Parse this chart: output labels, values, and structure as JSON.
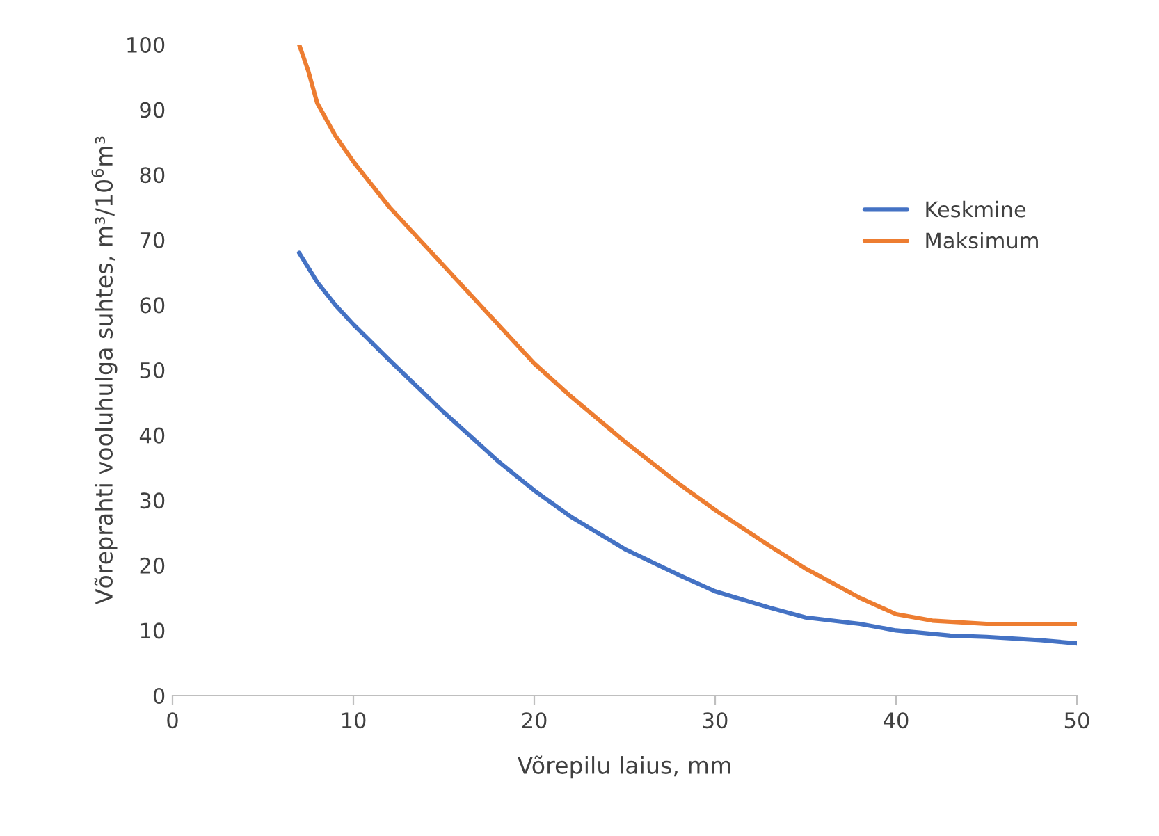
{
  "chart_data": {
    "type": "line",
    "xlabel": "Võrepilu laius, mm",
    "ylabel": "Võreprahti vooluhulga suhtes, m³/10$^{6}$m³",
    "xlim": [
      0,
      50
    ],
    "xticks": [
      0,
      10,
      20,
      30,
      40,
      50
    ],
    "ylim": [
      0,
      100
    ],
    "yticks": [
      0,
      10,
      20,
      30,
      40,
      50,
      60,
      70,
      80,
      90,
      100
    ],
    "grid": false,
    "legend": "right",
    "line_style": "solid",
    "marker": "none",
    "series": [
      {
        "name": "Keskmine",
        "color": "#4472c4",
        "x": [
          7,
          8,
          9,
          10,
          12,
          15,
          18,
          20,
          22,
          25,
          28,
          30,
          33,
          35,
          38,
          40,
          43,
          45,
          48,
          50
        ],
        "values": [
          68,
          63.5,
          60,
          57,
          51.5,
          43.5,
          36,
          31.5,
          27.5,
          22.5,
          18.5,
          16,
          13.5,
          12,
          11,
          10,
          9.2,
          9,
          8.5,
          8
        ]
      },
      {
        "name": "Maksimum",
        "color": "#ed7d31",
        "x": [
          7,
          7.5,
          8,
          9,
          10,
          12,
          15,
          18,
          20,
          22,
          25,
          28,
          30,
          33,
          35,
          38,
          40,
          42,
          45,
          48,
          50
        ],
        "values": [
          100,
          96,
          91,
          86,
          82,
          75,
          66,
          57,
          51,
          46,
          39,
          32.5,
          28.5,
          23,
          19.5,
          15,
          12.5,
          11.5,
          11,
          11,
          11
        ]
      }
    ]
  }
}
